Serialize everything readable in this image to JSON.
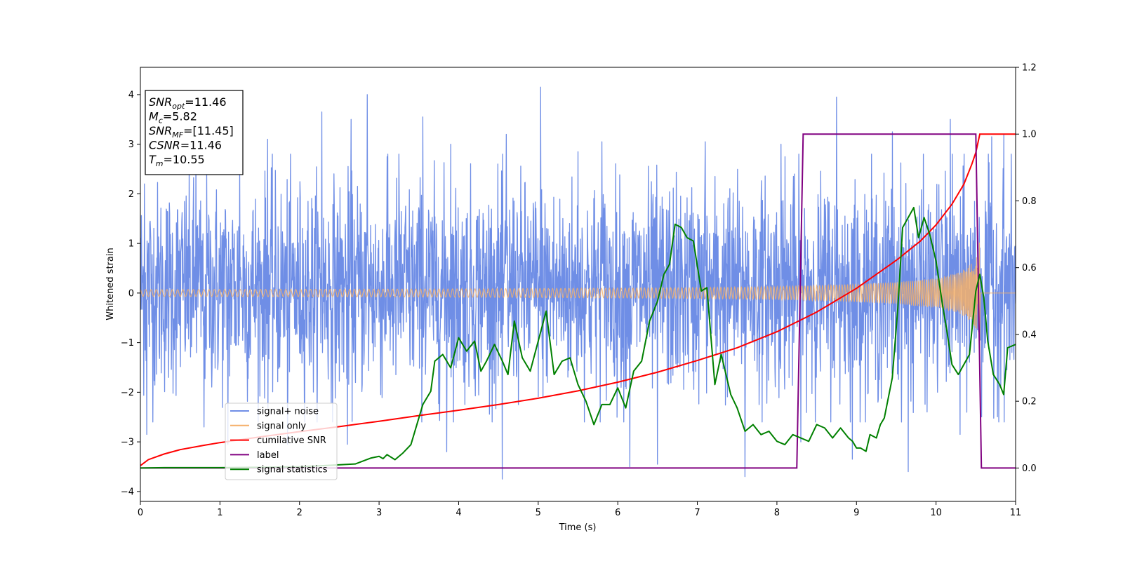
{
  "chart_data": {
    "type": "line",
    "xlabel": "Time (s)",
    "ylabel": "Whitened strain",
    "xlim": [
      0,
      11
    ],
    "ylim": [
      -4.2,
      4.55
    ],
    "y2lim": [
      -0.1,
      1.2
    ],
    "x_ticks": [
      0,
      1,
      2,
      3,
      4,
      5,
      6,
      7,
      8,
      9,
      10,
      11
    ],
    "y_ticks": [
      -4,
      -3,
      -2,
      -1,
      0,
      1,
      2,
      3,
      4
    ],
    "y2_ticks": [
      0.0,
      0.2,
      0.4,
      0.6,
      0.8,
      1.0,
      1.2
    ],
    "grid": false,
    "legend_position": "lower-left",
    "annotation": {
      "lines": [
        {
          "main": "SNR",
          "sub": "opt",
          "rest": "=11.46"
        },
        {
          "main": "M",
          "sub": "c",
          "rest": "=5.82"
        },
        {
          "main": "SNR",
          "sub": "MF",
          "rest": "=[11.45]"
        },
        {
          "main": "CSNR",
          "sub": "",
          "rest": "=11.46"
        },
        {
          "main": "T",
          "sub": "m",
          "rest": "=10.55"
        }
      ]
    },
    "series": [
      {
        "name": "signal+ noise",
        "color": "#6f8ee6",
        "axis": "left",
        "kind": "noise",
        "typical_envelope": [
          -2.0,
          2.2
        ],
        "peaks": [
          {
            "x": 0.05,
            "y": 2.2
          },
          {
            "x": 0.08,
            "y": -2.85
          },
          {
            "x": 0.7,
            "y": 3.05
          },
          {
            "x": 0.8,
            "y": -2.7
          },
          {
            "x": 1.1,
            "y": -3.05
          },
          {
            "x": 1.25,
            "y": 2.5
          },
          {
            "x": 1.6,
            "y": 3.1
          },
          {
            "x": 1.85,
            "y": -3.05
          },
          {
            "x": 2.28,
            "y": 3.65
          },
          {
            "x": 2.6,
            "y": -3.05
          },
          {
            "x": 2.65,
            "y": 3.5
          },
          {
            "x": 2.85,
            "y": 4.0
          },
          {
            "x": 3.1,
            "y": 2.75
          },
          {
            "x": 3.25,
            "y": 2.8
          },
          {
            "x": 3.55,
            "y": 3.55
          },
          {
            "x": 3.9,
            "y": 3.0
          },
          {
            "x": 3.85,
            "y": -3.2
          },
          {
            "x": 4.55,
            "y": -3.75
          },
          {
            "x": 4.6,
            "y": 3.2
          },
          {
            "x": 5.03,
            "y": 4.15
          },
          {
            "x": 5.5,
            "y": 2.85
          },
          {
            "x": 5.8,
            "y": 3.05
          },
          {
            "x": 6.15,
            "y": -3.5
          },
          {
            "x": 6.5,
            "y": 3.6
          },
          {
            "x": 6.5,
            "y": -3.45
          },
          {
            "x": 7.1,
            "y": 3.05
          },
          {
            "x": 7.6,
            "y": -3.7
          },
          {
            "x": 8.05,
            "y": 3.0
          },
          {
            "x": 8.1,
            "y": 2.75
          },
          {
            "x": 8.3,
            "y": -3.0
          },
          {
            "x": 8.75,
            "y": 3.95
          },
          {
            "x": 8.95,
            "y": -3.35
          },
          {
            "x": 9.45,
            "y": 3.25
          },
          {
            "x": 9.65,
            "y": -3.6
          },
          {
            "x": 10.18,
            "y": 3.5
          },
          {
            "x": 10.3,
            "y": -2.85
          },
          {
            "x": 10.7,
            "y": 3.15
          },
          {
            "x": 10.85,
            "y": 3.2
          }
        ]
      },
      {
        "name": "signal only",
        "color": "#f5b06a",
        "axis": "left",
        "kind": "chirp",
        "envelope": [
          [
            0.0,
            0.07
          ],
          [
            2.0,
            0.075
          ],
          [
            4.0,
            0.085
          ],
          [
            6.0,
            0.1
          ],
          [
            7.0,
            0.11
          ],
          [
            8.0,
            0.13
          ],
          [
            9.0,
            0.18
          ],
          [
            9.5,
            0.22
          ],
          [
            10.0,
            0.3
          ],
          [
            10.3,
            0.42
          ],
          [
            10.45,
            0.6
          ],
          [
            10.53,
            0.8
          ],
          [
            10.55,
            1.35
          ],
          [
            10.56,
            0.0
          ],
          [
            11.0,
            0.0
          ]
        ]
      },
      {
        "name": "cumilative SNR",
        "color": "#ff0000",
        "axis": "right",
        "points": [
          [
            0.0,
            0.007
          ],
          [
            0.1,
            0.025
          ],
          [
            0.3,
            0.042
          ],
          [
            0.5,
            0.055
          ],
          [
            0.8,
            0.068
          ],
          [
            1.0,
            0.076
          ],
          [
            1.5,
            0.093
          ],
          [
            2.0,
            0.109
          ],
          [
            2.5,
            0.124
          ],
          [
            3.0,
            0.14
          ],
          [
            3.5,
            0.157
          ],
          [
            4.0,
            0.173
          ],
          [
            4.5,
            0.19
          ],
          [
            5.0,
            0.209
          ],
          [
            5.5,
            0.231
          ],
          [
            6.0,
            0.257
          ],
          [
            6.5,
            0.287
          ],
          [
            7.0,
            0.322
          ],
          [
            7.5,
            0.36
          ],
          [
            8.0,
            0.408
          ],
          [
            8.5,
            0.467
          ],
          [
            9.0,
            0.538
          ],
          [
            9.5,
            0.622
          ],
          [
            9.8,
            0.679
          ],
          [
            10.0,
            0.728
          ],
          [
            10.2,
            0.79
          ],
          [
            10.35,
            0.85
          ],
          [
            10.45,
            0.91
          ],
          [
            10.5,
            0.945
          ],
          [
            10.55,
            1.0
          ],
          [
            11.0,
            1.0
          ]
        ]
      },
      {
        "name": "label",
        "color": "#800080",
        "axis": "right",
        "points": [
          [
            0.0,
            0.0
          ],
          [
            8.25,
            0.0
          ],
          [
            8.33,
            1.0
          ],
          [
            10.5,
            1.0
          ],
          [
            10.57,
            0.0
          ],
          [
            11.0,
            0.0
          ]
        ]
      },
      {
        "name": "signal statistics",
        "color": "#008000",
        "axis": "right",
        "points": [
          [
            0.0,
            0.0
          ],
          [
            0.3,
            0.001
          ],
          [
            1.0,
            0.001
          ],
          [
            1.5,
            0.002
          ],
          [
            2.0,
            0.004
          ],
          [
            2.3,
            0.007
          ],
          [
            2.7,
            0.012
          ],
          [
            2.9,
            0.03
          ],
          [
            3.0,
            0.035
          ],
          [
            3.05,
            0.028
          ],
          [
            3.1,
            0.04
          ],
          [
            3.2,
            0.025
          ],
          [
            3.3,
            0.045
          ],
          [
            3.4,
            0.07
          ],
          [
            3.55,
            0.19
          ],
          [
            3.65,
            0.23
          ],
          [
            3.7,
            0.32
          ],
          [
            3.8,
            0.34
          ],
          [
            3.9,
            0.3
          ],
          [
            4.0,
            0.39
          ],
          [
            4.1,
            0.35
          ],
          [
            4.2,
            0.38
          ],
          [
            4.28,
            0.29
          ],
          [
            4.35,
            0.32
          ],
          [
            4.45,
            0.37
          ],
          [
            4.55,
            0.32
          ],
          [
            4.62,
            0.28
          ],
          [
            4.7,
            0.44
          ],
          [
            4.8,
            0.33
          ],
          [
            4.9,
            0.29
          ],
          [
            5.0,
            0.38
          ],
          [
            5.1,
            0.47
          ],
          [
            5.2,
            0.28
          ],
          [
            5.3,
            0.32
          ],
          [
            5.4,
            0.33
          ],
          [
            5.5,
            0.25
          ],
          [
            5.6,
            0.2
          ],
          [
            5.7,
            0.13
          ],
          [
            5.8,
            0.19
          ],
          [
            5.9,
            0.19
          ],
          [
            6.0,
            0.24
          ],
          [
            6.1,
            0.18
          ],
          [
            6.2,
            0.29
          ],
          [
            6.3,
            0.32
          ],
          [
            6.4,
            0.44
          ],
          [
            6.5,
            0.5
          ],
          [
            6.58,
            0.58
          ],
          [
            6.65,
            0.61
          ],
          [
            6.72,
            0.73
          ],
          [
            6.8,
            0.72
          ],
          [
            6.87,
            0.69
          ],
          [
            6.95,
            0.68
          ],
          [
            7.05,
            0.53
          ],
          [
            7.12,
            0.54
          ],
          [
            7.22,
            0.25
          ],
          [
            7.3,
            0.34
          ],
          [
            7.42,
            0.22
          ],
          [
            7.5,
            0.18
          ],
          [
            7.6,
            0.11
          ],
          [
            7.7,
            0.13
          ],
          [
            7.8,
            0.1
          ],
          [
            7.9,
            0.11
          ],
          [
            8.0,
            0.08
          ],
          [
            8.1,
            0.07
          ],
          [
            8.2,
            0.1
          ],
          [
            8.3,
            0.09
          ],
          [
            8.4,
            0.08
          ],
          [
            8.5,
            0.13
          ],
          [
            8.6,
            0.12
          ],
          [
            8.7,
            0.09
          ],
          [
            8.8,
            0.12
          ],
          [
            8.9,
            0.09
          ],
          [
            8.95,
            0.08
          ],
          [
            9.0,
            0.06
          ],
          [
            9.05,
            0.06
          ],
          [
            9.12,
            0.05
          ],
          [
            9.17,
            0.1
          ],
          [
            9.25,
            0.09
          ],
          [
            9.3,
            0.13
          ],
          [
            9.35,
            0.15
          ],
          [
            9.45,
            0.27
          ],
          [
            9.52,
            0.48
          ],
          [
            9.58,
            0.72
          ],
          [
            9.65,
            0.75
          ],
          [
            9.72,
            0.78
          ],
          [
            9.78,
            0.69
          ],
          [
            9.85,
            0.75
          ],
          [
            9.92,
            0.7
          ],
          [
            10.0,
            0.62
          ],
          [
            10.08,
            0.49
          ],
          [
            10.13,
            0.42
          ],
          [
            10.2,
            0.31
          ],
          [
            10.28,
            0.28
          ],
          [
            10.35,
            0.31
          ],
          [
            10.42,
            0.34
          ],
          [
            10.5,
            0.53
          ],
          [
            10.55,
            0.58
          ],
          [
            10.6,
            0.51
          ],
          [
            10.65,
            0.38
          ],
          [
            10.72,
            0.28
          ],
          [
            10.8,
            0.25
          ],
          [
            10.85,
            0.22
          ],
          [
            10.9,
            0.36
          ],
          [
            11.0,
            0.37
          ]
        ]
      }
    ]
  }
}
